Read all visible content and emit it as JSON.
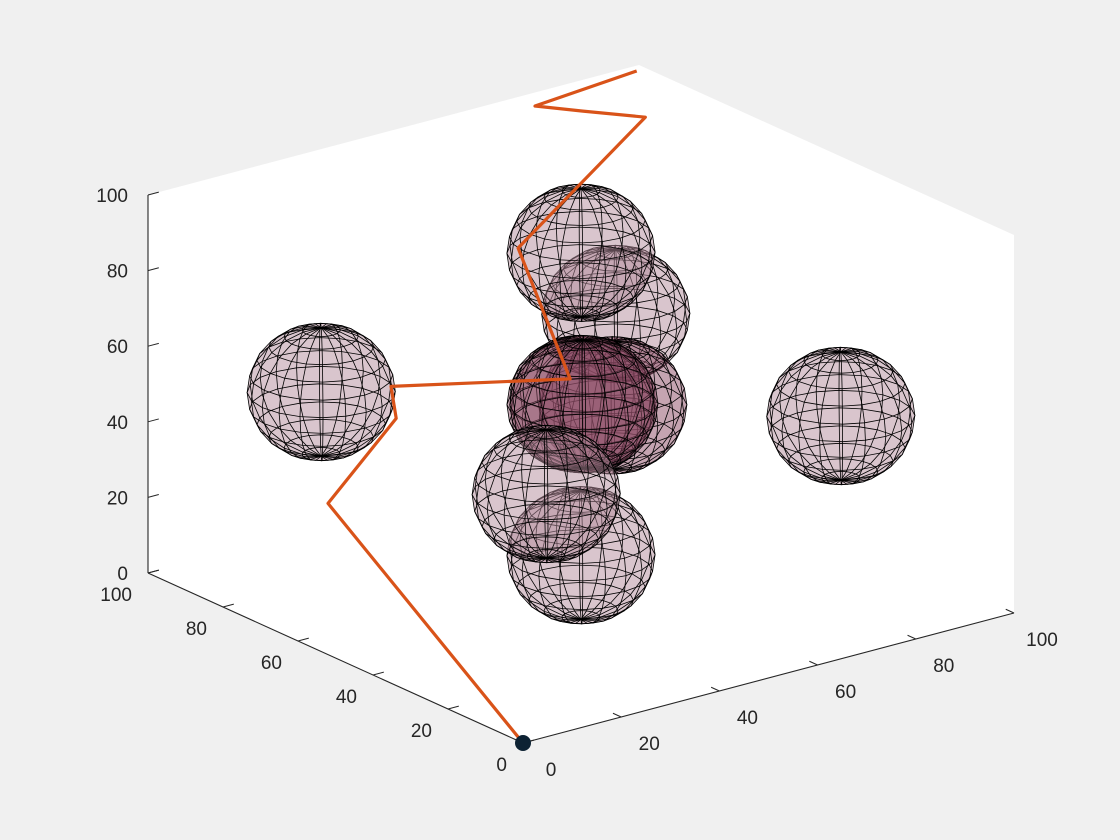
{
  "chart_data": {
    "type": "3d-line-with-ellipsoid-obstacles",
    "title": "",
    "xlabel": "",
    "ylabel": "",
    "zlabel": "",
    "xlim": [
      0,
      100
    ],
    "ylim": [
      0,
      100
    ],
    "zlim": [
      0,
      100
    ],
    "ticks": {
      "x": [
        "0",
        "20",
        "40",
        "60",
        "80",
        "100"
      ],
      "y": [
        "0",
        "20",
        "40",
        "60",
        "80",
        "100"
      ],
      "z": [
        "0",
        "20",
        "40",
        "60",
        "80",
        "100"
      ]
    },
    "grid": false,
    "view": "default-3d-box",
    "colors": {
      "path": "#d95319",
      "obstacle_fill": "#b48c9c",
      "obstacle_overlap_fill": "#8c4a64",
      "start_marker": "#0d2233",
      "edges": "#000000"
    },
    "start": {
      "x": 0,
      "y": 0,
      "z": 0
    },
    "path": [
      {
        "x": 0,
        "y": 0,
        "z": 0
      },
      {
        "x": 0,
        "y": 52,
        "z": 40
      },
      {
        "x": 20,
        "y": 60,
        "z": 52
      },
      {
        "x": 22,
        "y": 64,
        "z": 58
      },
      {
        "x": 60,
        "y": 66,
        "z": 46
      },
      {
        "x": 54,
        "y": 72,
        "z": 80
      },
      {
        "x": 86,
        "y": 80,
        "z": 100
      },
      {
        "x": 84,
        "y": 94,
        "z": 96
      },
      {
        "x": 75,
        "y": 95,
        "z": 100
      },
      {
        "x": 98,
        "y": 98,
        "z": 100
      }
    ],
    "obstacles": [
      {
        "center": [
          50,
          50,
          90
        ],
        "radii": [
          12,
          12,
          17
        ]
      },
      {
        "center": [
          20,
          80,
          50
        ],
        "radii": [
          12,
          12,
          17
        ]
      },
      {
        "center": [
          80,
          20,
          50
        ],
        "radii": [
          12,
          12,
          17
        ]
      },
      {
        "center": [
          50,
          50,
          10
        ],
        "radii": [
          12,
          12,
          17
        ]
      },
      {
        "center": [
          50,
          50,
          50
        ],
        "radii": [
          12,
          12,
          17
        ]
      },
      {
        "center": [
          58,
          52,
          46
        ],
        "radii": [
          12,
          12,
          17
        ]
      },
      {
        "center": [
          46,
          44,
          54
        ],
        "radii": [
          12,
          12,
          17
        ]
      },
      {
        "center": [
          80,
          80,
          50
        ],
        "radii": [
          12,
          12,
          17
        ]
      },
      {
        "center": [
          20,
          20,
          50
        ],
        "radii": [
          12,
          12,
          17
        ]
      }
    ]
  }
}
